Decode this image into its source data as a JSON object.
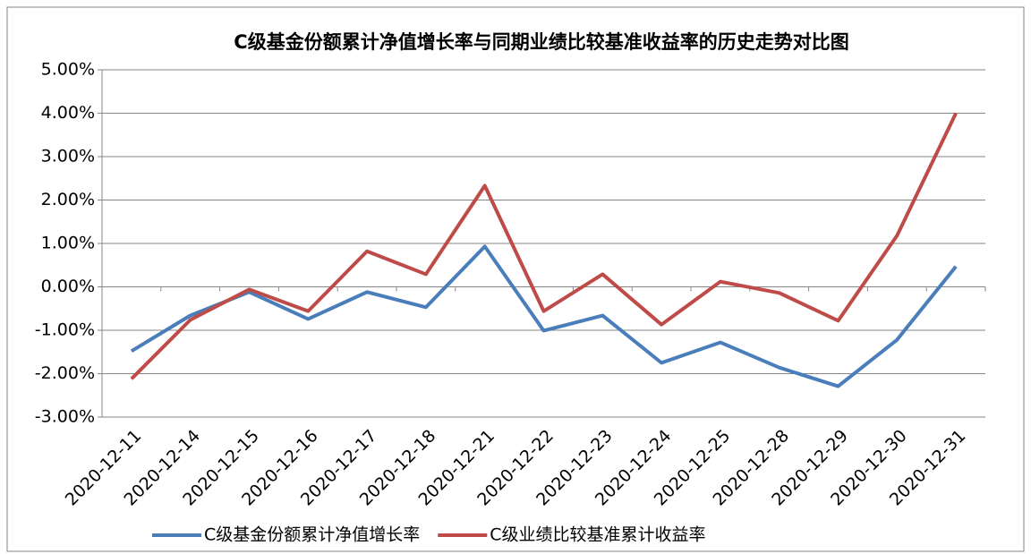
{
  "chart_data": {
    "type": "line",
    "title": "C级基金份额累计净值增长率与同期业绩比较基准收益率的历史走势对比图",
    "categories": [
      "2020-12-11",
      "2020-12-14",
      "2020-12-15",
      "2020-12-16",
      "2020-12-17",
      "2020-12-18",
      "2020-12-21",
      "2020-12-22",
      "2020-12-23",
      "2020-12-24",
      "2020-12-25",
      "2020-12-28",
      "2020-12-29",
      "2020-12-30",
      "2020-12-31"
    ],
    "series": [
      {
        "name": "C级基金份额累计净值增长率",
        "color": "#4a7ebb",
        "values": [
          -1.48,
          -0.66,
          -0.12,
          -0.74,
          -0.12,
          -0.47,
          0.93,
          -1.01,
          -0.66,
          -1.75,
          -1.28,
          -1.86,
          -2.29,
          -1.22,
          0.47
        ]
      },
      {
        "name": "C级业绩比较基准累计收益率",
        "color": "#be4b48",
        "values": [
          -2.12,
          -0.76,
          -0.06,
          -0.56,
          0.82,
          0.29,
          2.33,
          -0.56,
          0.29,
          -0.87,
          0.12,
          -0.14,
          -0.78,
          1.18,
          4.0
        ]
      }
    ],
    "ylim": [
      -3,
      5
    ],
    "yticks": [
      {
        "value": -3,
        "label": "-3.00%"
      },
      {
        "value": -2,
        "label": "-2.00%"
      },
      {
        "value": -1,
        "label": "-1.00%"
      },
      {
        "value": 0,
        "label": "0.00%"
      },
      {
        "value": 1,
        "label": "1.00%"
      },
      {
        "value": 2,
        "label": "2.00%"
      },
      {
        "value": 3,
        "label": "3.00%"
      },
      {
        "value": 4,
        "label": "4.00%"
      },
      {
        "value": 5,
        "label": "5.00%"
      }
    ],
    "grid": true,
    "legend": "bottom"
  }
}
